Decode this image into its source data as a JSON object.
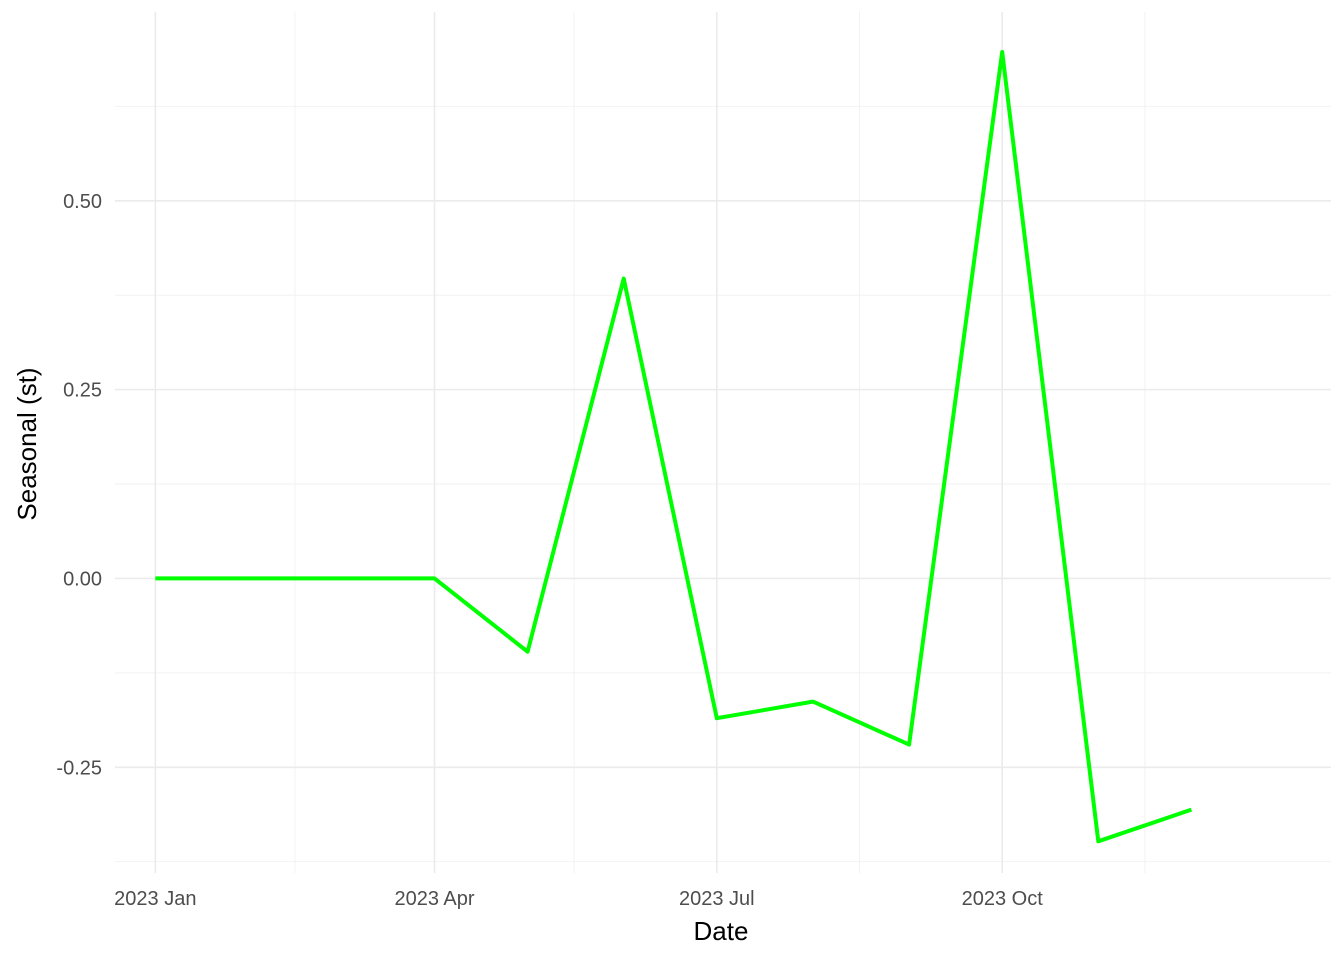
{
  "chart_data": {
    "type": "line",
    "title": "",
    "xlabel": "Date",
    "ylabel": "Seasonal (st)",
    "x": [
      "2023-01-01",
      "2023-02-01",
      "2023-03-01",
      "2023-04-01",
      "2023-05-01",
      "2023-06-01",
      "2023-07-01",
      "2023-08-01",
      "2023-09-01",
      "2023-10-01",
      "2023-11-01",
      "2023-12-01"
    ],
    "series": [
      {
        "values": [
          0,
          0,
          0,
          0,
          -0.097,
          0.397,
          -0.185,
          -0.163,
          -0.22,
          0.697,
          -0.348,
          -0.306
        ],
        "color": "#00ff00"
      }
    ],
    "xlim": [
      "2022-12-19",
      "2024-01-15"
    ],
    "ylim": [
      -0.39,
      0.75
    ],
    "x_ticks": [
      {
        "date": "2023-01-01",
        "label": "2023 Jan"
      },
      {
        "date": "2023-04-01",
        "label": "2023 Apr"
      },
      {
        "date": "2023-07-01",
        "label": "2023 Jul"
      },
      {
        "date": "2023-10-01",
        "label": "2023 Oct"
      }
    ],
    "x_minor_ticks": [
      "2023-02-15",
      "2023-05-16",
      "2023-08-16",
      "2023-11-16"
    ],
    "y_ticks": [
      {
        "value": 0.5,
        "label": "0.50"
      },
      {
        "value": 0.25,
        "label": "0.25"
      },
      {
        "value": 0.0,
        "label": "0.00"
      },
      {
        "value": -0.25,
        "label": "-0.25"
      }
    ],
    "y_minor_ticks": [
      0.625,
      0.375,
      0.125,
      -0.125,
      -0.375
    ],
    "grid": true,
    "legend": "none",
    "colors": {
      "grid_major": "#ebebeb",
      "grid_minor": "#f2f2f2",
      "line": "#00ff00",
      "tick_text": "#4d4d4d"
    }
  }
}
